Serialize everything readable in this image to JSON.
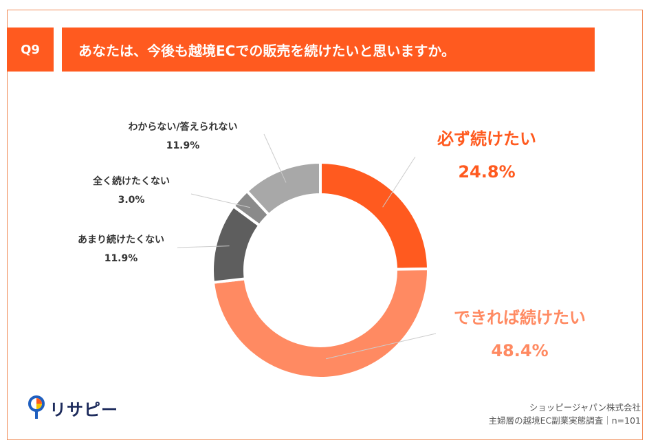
{
  "header": {
    "question_no": "Q9",
    "question_text": "あなたは、今後も越境ECでの販売を続けたいと思いますか。"
  },
  "chart_data": {
    "type": "pie",
    "variant": "donut",
    "unit": "%",
    "slices": [
      {
        "label": "必ず続けたい",
        "value": 24.8,
        "value_label": "24.8%",
        "color": "#ff5a1f"
      },
      {
        "label": "できれば続けたい",
        "value": 48.4,
        "value_label": "48.4%",
        "color": "#ff8a62"
      },
      {
        "label": "あまり続けたくない",
        "value": 11.9,
        "value_label": "11.9%",
        "color": "#5e5e5e"
      },
      {
        "label": "全く続けたくない",
        "value": 3.0,
        "value_label": "3.0%",
        "color": "#8a8a8a"
      },
      {
        "label": "わからない/答えられない",
        "value": 11.9,
        "value_label": "11.9%",
        "color": "#a8a8a8"
      }
    ]
  },
  "footer": {
    "logo_text": "リサピー",
    "company": "ショッピージャパン株式会社",
    "survey": "主婦層の越境EC副業実態調査｜n=101"
  }
}
